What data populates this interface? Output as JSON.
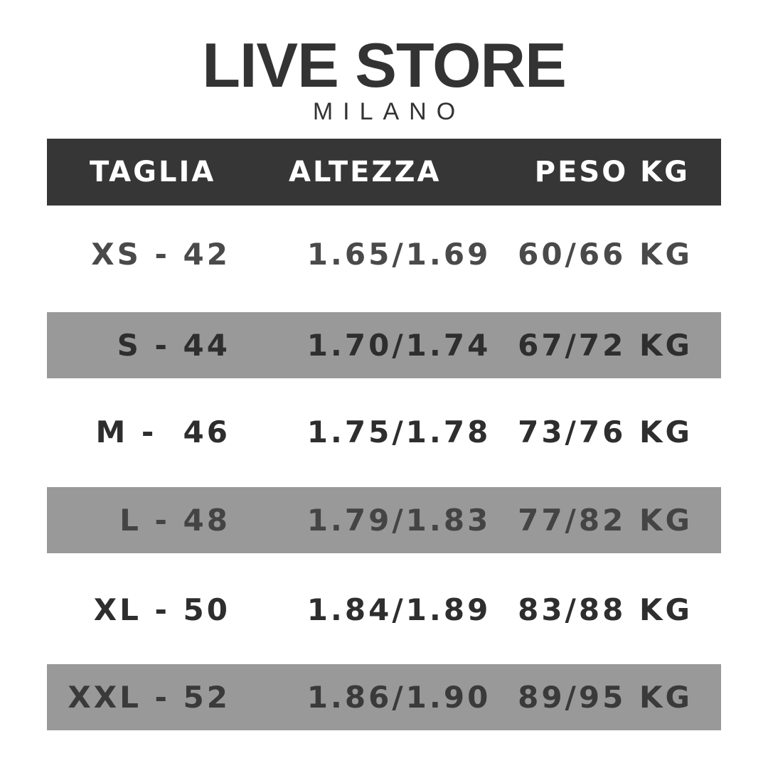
{
  "logo": {
    "main": "LIVE STORE",
    "sub": "MILANO"
  },
  "table": {
    "headers": [
      "TAGLIA",
      "ALTEZZA",
      "PESO KG"
    ],
    "rows": [
      {
        "size": "XS - 42",
        "height": "1.65/1.69",
        "weight": "60/66 KG",
        "color": "#4a4a4a"
      },
      {
        "size": "S - 44",
        "height": "1.70/1.74",
        "weight": "67/72 KG",
        "color": "#2e2e2e"
      },
      {
        "size": "M -  46",
        "height": "1.75/1.78",
        "weight": "73/76 KG",
        "color": "#2e2e2e"
      },
      {
        "size": "L - 48",
        "height": "1.79/1.83",
        "weight": "77/82 KG",
        "color": "#444444"
      },
      {
        "size": "XL - 50",
        "height": "1.84/1.89",
        "weight": "83/88 KG",
        "color": "#2e2e2e"
      },
      {
        "size": "XXL - 52",
        "height": "1.86/1.90",
        "weight": "89/95 KG",
        "color": "#3a3a3a"
      }
    ]
  },
  "colors": {
    "header_bg": "#363636",
    "band_bg": "#999999",
    "text": "#333333"
  }
}
